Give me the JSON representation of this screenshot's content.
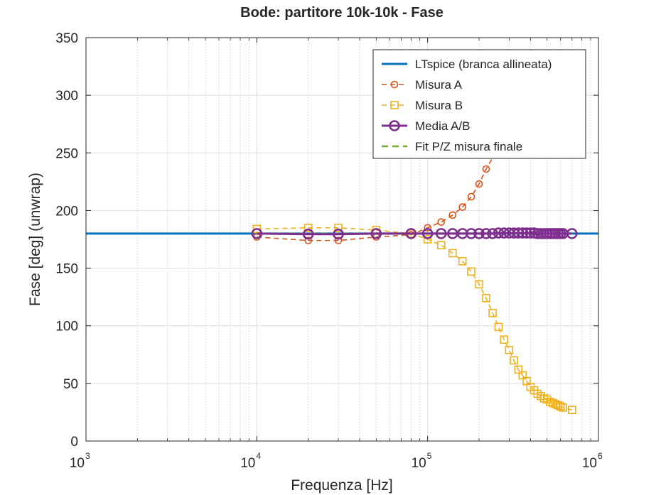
{
  "chart_data": {
    "type": "line",
    "title": "Bode: partitore 10k-10k - Fase",
    "xlabel": "Frequenza [Hz]",
    "ylabel": "Fase [deg] (unwrap)",
    "xscale": "log",
    "xlim": [
      1000,
      1000000
    ],
    "ylim": [
      0,
      350
    ],
    "grid": true,
    "legend_position": "top-right",
    "x_ticks": [
      {
        "value": 1000,
        "base": "10",
        "exp": "3"
      },
      {
        "value": 10000,
        "base": "10",
        "exp": "4"
      },
      {
        "value": 100000,
        "base": "10",
        "exp": "5"
      },
      {
        "value": 1000000,
        "base": "10",
        "exp": "6"
      }
    ],
    "y_ticks": [
      "0",
      "50",
      "100",
      "150",
      "200",
      "250",
      "300",
      "350"
    ],
    "series": [
      {
        "name": "LTspice (branca allineata)",
        "color": "#0072BD",
        "line": "solid",
        "marker": "none",
        "x": [
          1000,
          1000000
        ],
        "y": [
          180,
          180
        ]
      },
      {
        "name": "Misura A",
        "color": "#D95319",
        "line": "dashed",
        "marker": "circle",
        "x": [
          10000,
          20000,
          30000,
          50000,
          80000,
          100000,
          120000,
          140000,
          160000,
          180000,
          200000,
          220000
        ],
        "y": [
          177,
          174,
          174,
          177,
          179,
          185,
          190,
          196,
          203,
          212,
          223,
          236
        ],
        "line_x_end": 245000,
        "line_y_end": 248
      },
      {
        "name": "Misura B",
        "color": "#EDB120",
        "line": "dashed",
        "marker": "square",
        "x": [
          10000,
          20000,
          30000,
          50000,
          80000,
          100000,
          120000,
          140000,
          160000,
          180000,
          200000,
          220000,
          240000,
          260000,
          280000,
          300000,
          320000,
          340000,
          360000,
          380000,
          400000,
          420000,
          440000,
          460000,
          480000,
          500000,
          520000,
          540000,
          560000,
          580000,
          600000,
          620000,
          700000
        ],
        "y": [
          184,
          185,
          185,
          183,
          180,
          175,
          170,
          163,
          156,
          147,
          136,
          124,
          111,
          99,
          88,
          79,
          70,
          62,
          57,
          52,
          47,
          44,
          41,
          39,
          37,
          36,
          34,
          33,
          32,
          31,
          30,
          29,
          27
        ]
      },
      {
        "name": "Media A/B",
        "color": "#7E2F8E",
        "line": "solid",
        "marker": "circle",
        "x": [
          10000,
          20000,
          30000,
          50000,
          80000,
          100000,
          120000,
          140000,
          160000,
          180000,
          200000,
          220000,
          240000,
          260000,
          280000,
          300000,
          320000,
          340000,
          360000,
          380000,
          400000,
          420000,
          440000,
          460000,
          480000,
          500000,
          520000,
          540000,
          560000,
          580000,
          600000,
          620000,
          700000
        ],
        "y": [
          180,
          179.5,
          179.5,
          180,
          180,
          180,
          180,
          180,
          180,
          180,
          180,
          180,
          180,
          180.5,
          180.5,
          180.5,
          180.5,
          180.5,
          180.5,
          180.5,
          180.5,
          180.5,
          180,
          180,
          180,
          180,
          180,
          180,
          180,
          180,
          180,
          180,
          180
        ]
      },
      {
        "name": "Fit P/Z misura finale",
        "color": "#77AC30",
        "line": "dashed",
        "marker": "none",
        "x": [
          10000,
          700000
        ],
        "y": [
          180,
          180
        ]
      }
    ]
  }
}
